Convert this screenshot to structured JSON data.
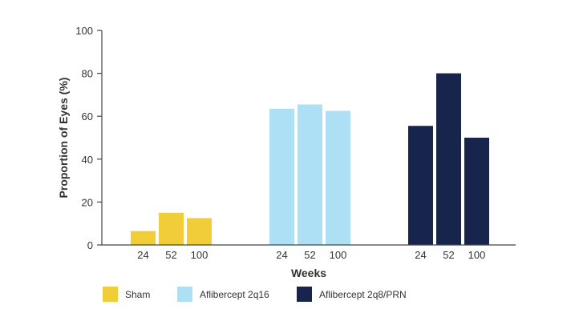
{
  "chart_data": {
    "type": "bar",
    "xlabel": "Weeks",
    "ylabel": "Proportion of Eyes (%)",
    "ylim": [
      0,
      100
    ],
    "yticks": [
      0,
      20,
      40,
      60,
      80,
      100
    ],
    "categories": [
      "24",
      "52",
      "100"
    ],
    "grid": false,
    "legend_position": "bottom",
    "series": [
      {
        "name": "Sham",
        "color": "#f2cd3a",
        "values": [
          6.5,
          15,
          12.5
        ]
      },
      {
        "name": "Aflibercept 2q16",
        "color": "#aee0f5",
        "values": [
          63.5,
          65.5,
          62.5
        ]
      },
      {
        "name": "Aflibercept 2q8/PRN",
        "color": "#17244c",
        "values": [
          55.5,
          80,
          50
        ]
      }
    ]
  }
}
